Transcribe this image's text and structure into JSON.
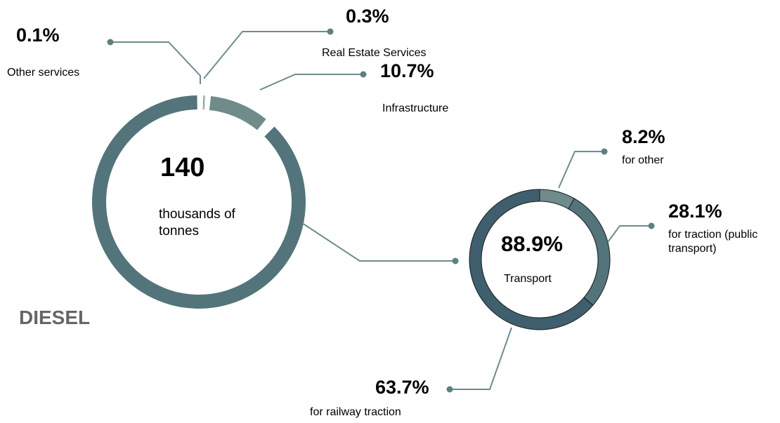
{
  "chart_data": [
    {
      "type": "pie",
      "title": "DIESEL",
      "center_value": "140",
      "center_label": "thousands of tonnes",
      "slices": [
        {
          "label": "Transport",
          "value": 88.9,
          "value_label": "88.9%",
          "color": "#53747a"
        },
        {
          "label": "Other services",
          "value": 0.1,
          "value_label": "0.1%",
          "color": "#53747a"
        },
        {
          "label": "Real Estate Services",
          "value": 0.3,
          "value_label": "0.3%",
          "color": "#53747a"
        },
        {
          "label": "Infrastructure",
          "value": 10.7,
          "value_label": "10.7%",
          "color": "#6f8b8c"
        }
      ]
    },
    {
      "type": "pie",
      "title": "",
      "center_value": "88.9%",
      "center_label": "Transport",
      "slices": [
        {
          "label": "for other",
          "value": 8.2,
          "value_label": "8.2%",
          "color": "#6f8b8c"
        },
        {
          "label": "for traction (public transport)",
          "value": 28.1,
          "value_label": "28.1%",
          "color": "#53747a"
        },
        {
          "label": "for railway traction",
          "value": 63.7,
          "value_label": "63.7%",
          "color": "#3f5f6e"
        }
      ]
    }
  ],
  "colors": {
    "leader_line": "#6f8b8c",
    "leader_dot": "#5f7f82",
    "title": "#666666"
  }
}
